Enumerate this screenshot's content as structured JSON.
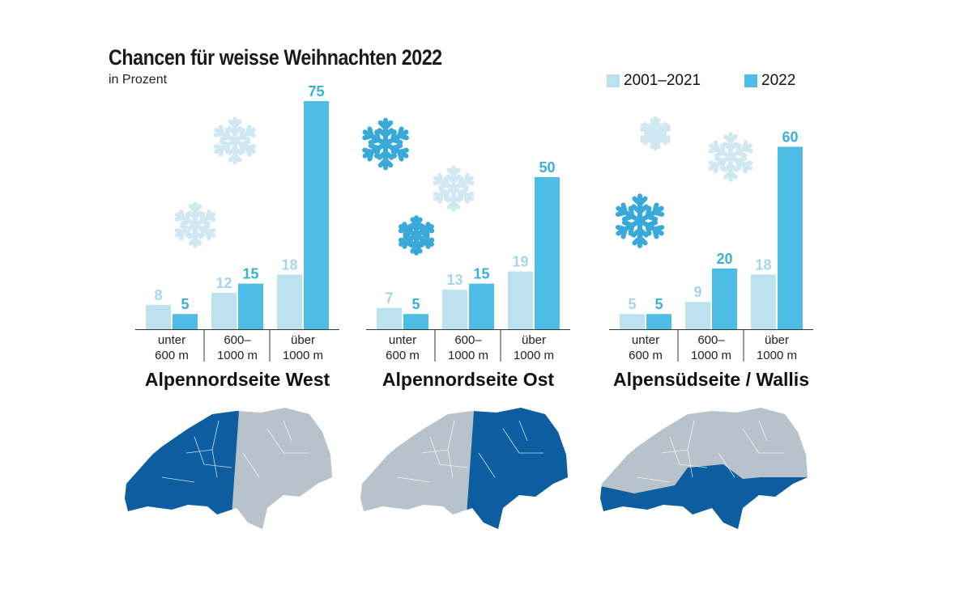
{
  "chart_data": {
    "type": "bar",
    "title": "Chancen für weisse Weihnachten 2022",
    "subtitle": "in Prozent",
    "categories": [
      [
        "unter",
        "600 m"
      ],
      [
        "600–",
        "1000 m"
      ],
      [
        "über",
        "1000 m"
      ]
    ],
    "legend": [
      {
        "name": "2001–2021",
        "color": "#bde2ef"
      },
      {
        "name": "2022",
        "color": "#4dbde5"
      }
    ],
    "legend_position": "top-right",
    "ylim": [
      0,
      75
    ],
    "panels": [
      {
        "region": "Alpennordseite West",
        "series": [
          {
            "name": "2001–2021",
            "values": [
              8,
              12,
              18
            ]
          },
          {
            "name": "2022",
            "values": [
              5,
              15,
              75
            ]
          }
        ]
      },
      {
        "region": "Alpennordseite Ost",
        "series": [
          {
            "name": "2001–2021",
            "values": [
              7,
              13,
              19
            ]
          },
          {
            "name": "2022",
            "values": [
              5,
              15,
              50
            ]
          }
        ]
      },
      {
        "region": "Alpensüdseite / Wallis",
        "series": [
          {
            "name": "2001–2021",
            "values": [
              5,
              9,
              18
            ]
          },
          {
            "name": "2022",
            "values": [
              5,
              20,
              60
            ]
          }
        ]
      }
    ]
  },
  "map_colors": {
    "highlight": "#0d5ea1",
    "base": "#b8c2ca",
    "border": "#ffffff"
  },
  "decoration_icons": [
    "snowflake-icon"
  ]
}
